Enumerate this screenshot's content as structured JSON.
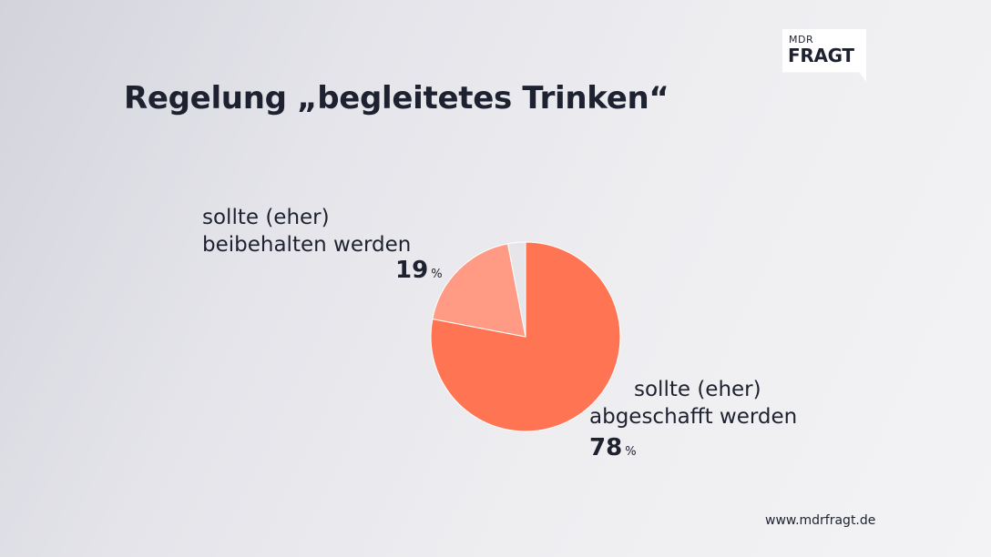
{
  "header": {
    "title": "Regelung „begleitetes Trinken“"
  },
  "logo": {
    "line1": "MDR",
    "line2": "FRAGT"
  },
  "chart_data": {
    "type": "pie",
    "title": "Regelung „begleitetes Trinken“",
    "unit": "%",
    "slices": [
      {
        "label_line1": "sollte (eher)",
        "label_line2": "abgeschafft werden",
        "value": 78,
        "color": "#ff7553"
      },
      {
        "label_line1": "sollte (eher)",
        "label_line2": "beibehalten werden",
        "value": 19,
        "color": "#ff9a84"
      },
      {
        "label_line1": "",
        "label_line2": "",
        "value": 3,
        "color": "#e6e6ea"
      }
    ]
  },
  "footer": {
    "source": "www.mdrfragt.de"
  }
}
